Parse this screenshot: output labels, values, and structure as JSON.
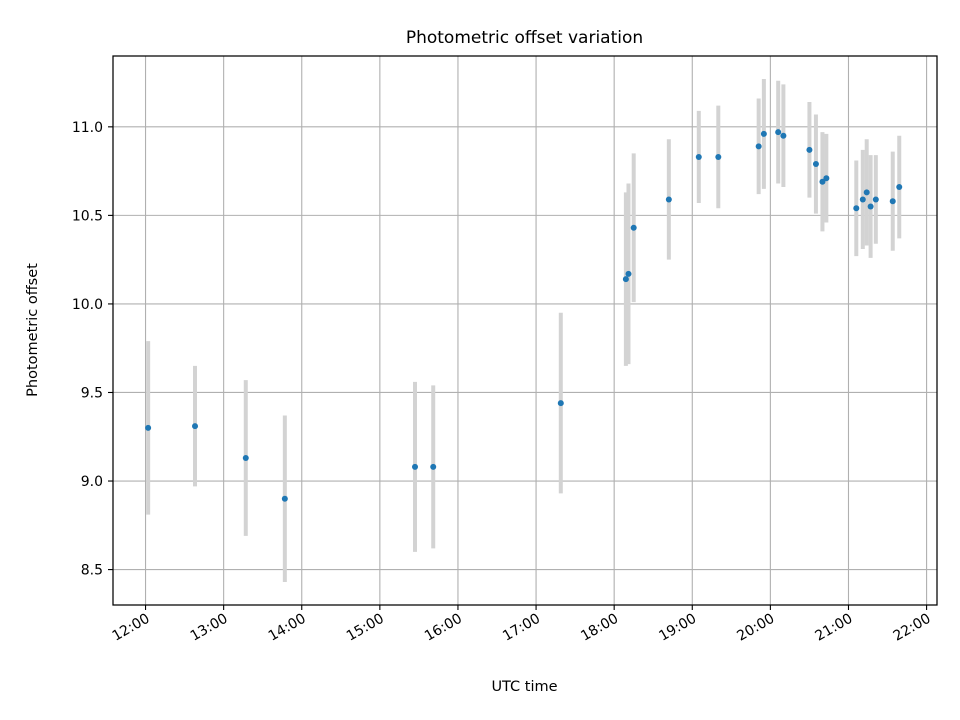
{
  "chart_data": {
    "type": "scatter",
    "title": "Photometric offset variation",
    "xlabel": "UTC time",
    "ylabel": "Photometric offset",
    "x_axis_type": "time",
    "xlim": [
      "11:35",
      "22:08"
    ],
    "ylim": [
      8.3,
      11.4
    ],
    "x_ticks": [
      "12:00",
      "13:00",
      "14:00",
      "15:00",
      "16:00",
      "17:00",
      "18:00",
      "19:00",
      "20:00",
      "21:00",
      "22:00"
    ],
    "y_ticks": [
      "8.5",
      "9.0",
      "9.5",
      "10.0",
      "10.5",
      "11.0"
    ],
    "grid": true,
    "point_color": "#1f77b4",
    "errorbar_color": "#d3d3d3",
    "points": [
      {
        "time": "12:02",
        "y": 9.3,
        "err": 0.49
      },
      {
        "time": "12:38",
        "y": 9.31,
        "err": 0.34
      },
      {
        "time": "13:17",
        "y": 9.13,
        "err": 0.44
      },
      {
        "time": "13:47",
        "y": 8.9,
        "err": 0.47
      },
      {
        "time": "15:27",
        "y": 9.08,
        "err": 0.48
      },
      {
        "time": "15:41",
        "y": 9.08,
        "err": 0.46
      },
      {
        "time": "17:19",
        "y": 9.44,
        "err": 0.51
      },
      {
        "time": "18:09",
        "y": 10.14,
        "err": 0.49
      },
      {
        "time": "18:11",
        "y": 10.17,
        "err": 0.51
      },
      {
        "time": "18:15",
        "y": 10.43,
        "err": 0.42
      },
      {
        "time": "18:42",
        "y": 10.59,
        "err": 0.34
      },
      {
        "time": "19:05",
        "y": 10.83,
        "err": 0.26
      },
      {
        "time": "19:20",
        "y": 10.83,
        "err": 0.29
      },
      {
        "time": "19:51",
        "y": 10.89,
        "err": 0.27
      },
      {
        "time": "19:55",
        "y": 10.96,
        "err": 0.31
      },
      {
        "time": "20:06",
        "y": 10.97,
        "err": 0.29
      },
      {
        "time": "20:10",
        "y": 10.95,
        "err": 0.29
      },
      {
        "time": "20:30",
        "y": 10.87,
        "err": 0.27
      },
      {
        "time": "20:35",
        "y": 10.79,
        "err": 0.28
      },
      {
        "time": "20:40",
        "y": 10.69,
        "err": 0.28
      },
      {
        "time": "20:43",
        "y": 10.71,
        "err": 0.25
      },
      {
        "time": "21:06",
        "y": 10.54,
        "err": 0.27
      },
      {
        "time": "21:11",
        "y": 10.59,
        "err": 0.28
      },
      {
        "time": "21:14",
        "y": 10.63,
        "err": 0.3
      },
      {
        "time": "21:17",
        "y": 10.55,
        "err": 0.29
      },
      {
        "time": "21:21",
        "y": 10.59,
        "err": 0.25
      },
      {
        "time": "21:34",
        "y": 10.58,
        "err": 0.28
      },
      {
        "time": "21:39",
        "y": 10.66,
        "err": 0.29
      }
    ]
  }
}
